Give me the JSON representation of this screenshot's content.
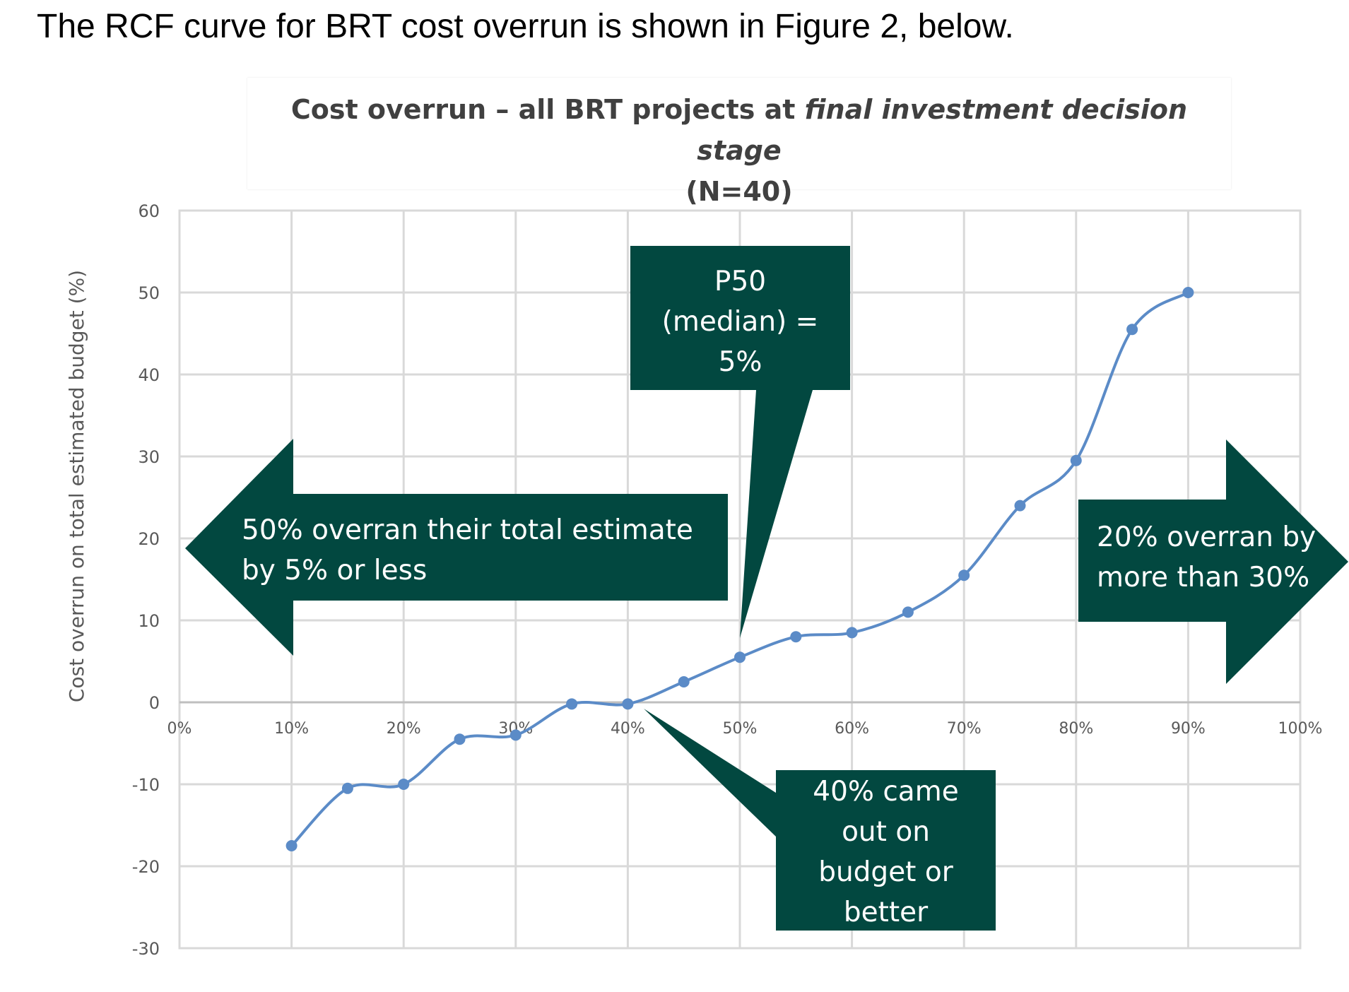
{
  "intro_text": "The RCF curve for BRT cost overrun is shown in Figure 2, below.",
  "colors": {
    "line": "#5b8bc7",
    "callout": "#024840",
    "grid": "#d9d9d9",
    "axis_text": "#595959"
  },
  "chart_data": {
    "type": "line",
    "title": "Cost overrun – all BRT projects at",
    "title_italic": "final investment decision stage",
    "title_line2": "(N=40)",
    "ylabel": "Cost overrun on total estimated budget (%)",
    "xlabel": "",
    "xlim": [
      0,
      100
    ],
    "ylim": [
      -30,
      60
    ],
    "x_ticks": [
      "0%",
      "10%",
      "20%",
      "30%",
      "40%",
      "50%",
      "60%",
      "70%",
      "80%",
      "90%",
      "100%"
    ],
    "y_ticks": [
      "60",
      "50",
      "40",
      "30",
      "20",
      "10",
      "0",
      "-10",
      "-20",
      "-30"
    ],
    "grid": true,
    "series": [
      {
        "x": [
          10,
          15,
          20,
          25,
          30,
          35,
          40,
          45,
          50,
          55,
          60,
          65,
          70,
          75,
          80,
          85,
          90
        ],
        "y": [
          -17.5,
          -10.5,
          -10,
          -4.5,
          -4,
          -0.2,
          -0.2,
          2.5,
          5.5,
          8,
          8.5,
          11,
          15.5,
          24,
          29.5,
          45.5,
          50
        ]
      }
    ],
    "annotations": {
      "p50": [
        "P50",
        "(median) =",
        "5%"
      ],
      "left_arrow": [
        "50% overran their total estimate",
        "by 5% or less"
      ],
      "right_arrow": [
        "20% overran by",
        "more than 30%"
      ],
      "bottom": [
        "40% came",
        "out on",
        "budget or",
        "better"
      ]
    }
  }
}
